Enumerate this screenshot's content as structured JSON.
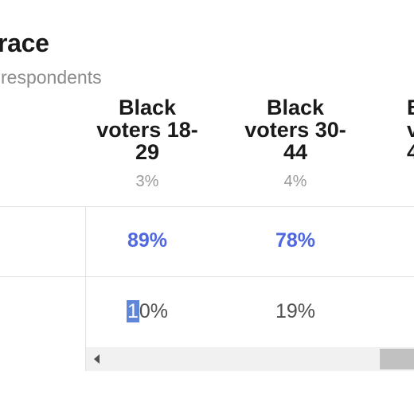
{
  "header": {
    "title": "race",
    "subtitle": "respondents"
  },
  "columns": [
    {
      "lines": [
        "Black",
        "voters 18-",
        "29"
      ],
      "share": "3%"
    },
    {
      "lines": [
        "Black",
        "voters 30-",
        "44"
      ],
      "share": "4%"
    },
    {
      "lines": [
        "B",
        "v",
        "4"
      ],
      "share": ""
    }
  ],
  "rows": [
    {
      "values": [
        "89%",
        "78%"
      ]
    },
    {
      "values_row2": {
        "first_selected": "1",
        "first_rest": "0%",
        "second": "19%"
      }
    }
  ],
  "colors": {
    "accent": "#4f67e0",
    "selection": "#5f86d8",
    "muted": "#9a9a9a"
  }
}
